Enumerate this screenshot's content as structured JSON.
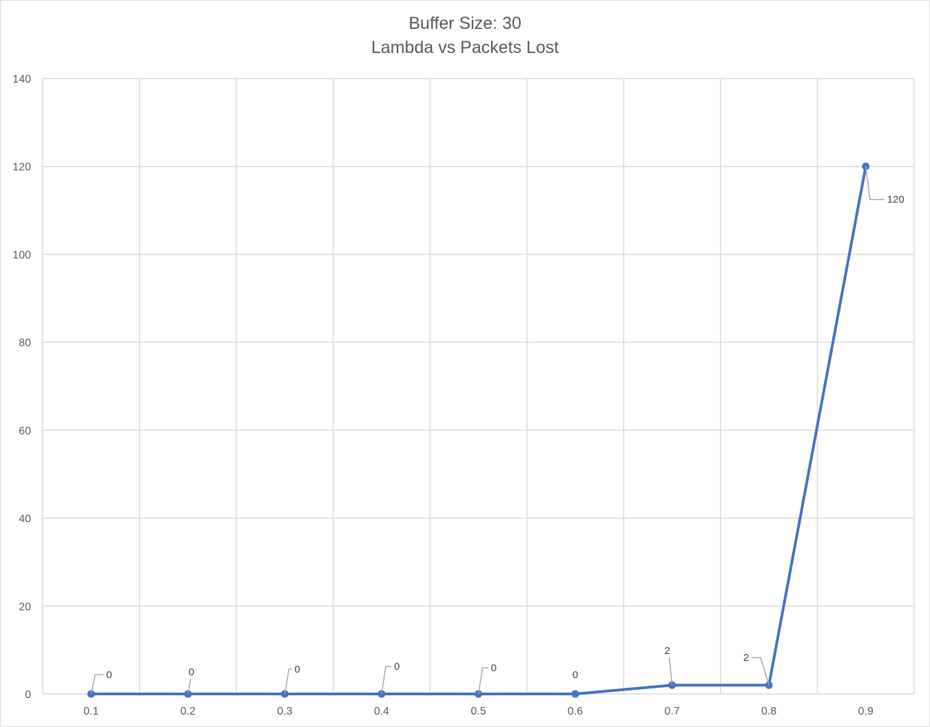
{
  "chart_data": {
    "type": "line",
    "title": "Buffer Size: 30",
    "subtitle": "Lambda vs Packets Lost",
    "xlabel": "",
    "ylabel": "",
    "categories": [
      "0.1",
      "0.2",
      "0.3",
      "0.4",
      "0.5",
      "0.6",
      "0.7",
      "0.8",
      "0.9"
    ],
    "series": [
      {
        "values": [
          0,
          0,
          0,
          0,
          0,
          0,
          2,
          2,
          120
        ],
        "color": "#4472c4"
      }
    ],
    "data_labels": [
      "0",
      "0",
      "0",
      "0",
      "0",
      "0",
      "2",
      "2",
      "120"
    ],
    "ylim": [
      0,
      140
    ],
    "yticks": [
      0,
      20,
      40,
      60,
      80,
      100,
      120,
      140
    ],
    "grid": true,
    "legend": "none"
  }
}
